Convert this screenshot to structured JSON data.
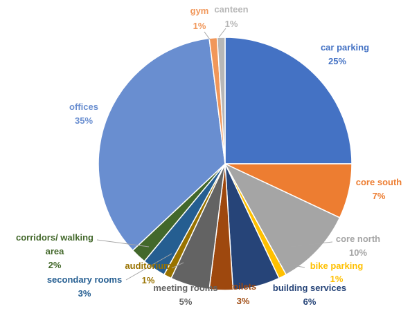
{
  "chart_data": {
    "type": "pie",
    "title": "",
    "slices": [
      {
        "name": "car parking",
        "value": 25,
        "label": "25%",
        "color": "#4472C4"
      },
      {
        "name": "core south",
        "value": 7,
        "label": "7%",
        "color": "#ED7D31"
      },
      {
        "name": "core north",
        "value": 10,
        "label": "10%",
        "color": "#A5A5A5"
      },
      {
        "name": "bike parking",
        "value": 1,
        "label": "1%",
        "color": "#FFC000"
      },
      {
        "name": "building services",
        "value": 6,
        "label": "6%",
        "color": "#264478"
      },
      {
        "name": "toilets",
        "value": 3,
        "label": "3%",
        "color": "#9E480E"
      },
      {
        "name": "meeting rooms",
        "value": 5,
        "label": "5%",
        "color": "#636363"
      },
      {
        "name": "auditorium",
        "value": 1,
        "label": "1%",
        "color": "#997300"
      },
      {
        "name": "secondary rooms",
        "value": 3,
        "label": "3%",
        "color": "#255E91"
      },
      {
        "name": "corridors/ walking area",
        "value": 2,
        "label": "2%",
        "color": "#43682B"
      },
      {
        "name": "offices",
        "value": 35,
        "label": "35%",
        "color": "#698ED0"
      },
      {
        "name": "gym",
        "value": 1,
        "label": "1%",
        "color": "#F1975A"
      },
      {
        "name": "canteen",
        "value": 1,
        "label": "1%",
        "color": "#B7B7B7"
      }
    ]
  }
}
